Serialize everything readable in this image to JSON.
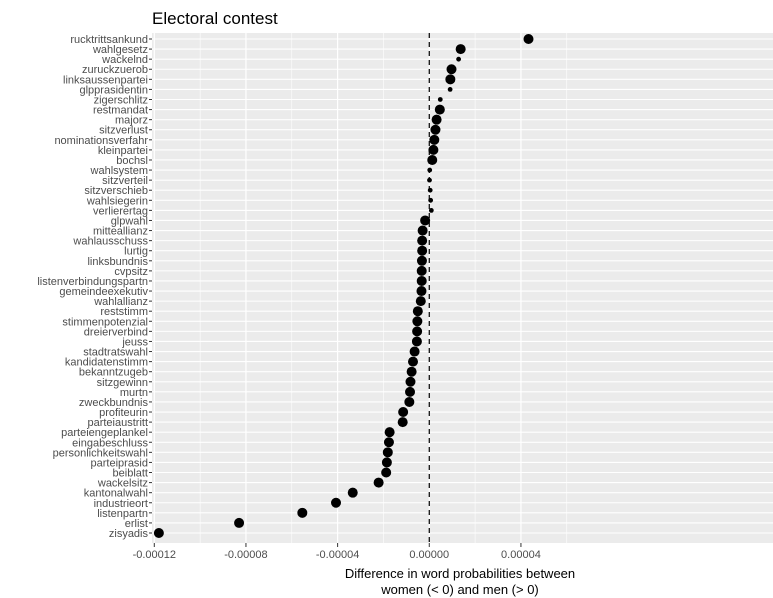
{
  "chart_data": {
    "type": "scatter",
    "title": "Electoral contest",
    "xlabel_lines": [
      "Difference in word probabilities between",
      "women (< 0) and men (> 0)"
    ],
    "ylabel": "",
    "xlim": [
      -0.000121,
      0.00015
    ],
    "x_ticks": [
      -0.00012,
      -8e-05,
      -4e-05,
      0.0,
      4e-05
    ],
    "x_tick_labels": [
      "-0.00012",
      "-0.00008",
      "-0.00004",
      "0.00000",
      "0.00004"
    ],
    "reference_line_x": 0.0,
    "grid": true,
    "colors": {
      "panel": "#ebebeb",
      "grid": "#ffffff",
      "point": "#000000",
      "text": "#4d4d4d"
    },
    "points": [
      {
        "word": "rucktrittsankund",
        "value": 4.33e-05,
        "size": "large"
      },
      {
        "word": "wahlgesetz",
        "value": 1.37e-05,
        "size": "large"
      },
      {
        "word": "wackelnd",
        "value": 1.28e-05,
        "size": "small"
      },
      {
        "word": "zuruckzuerob",
        "value": 9.7e-06,
        "size": "large"
      },
      {
        "word": "linksaussenpartei",
        "value": 9.2e-06,
        "size": "large"
      },
      {
        "word": "glpprasidentin",
        "value": 9.1e-06,
        "size": "small"
      },
      {
        "word": "zigerschlitz",
        "value": 4.8e-06,
        "size": "small"
      },
      {
        "word": "restmandat",
        "value": 4.6e-06,
        "size": "large"
      },
      {
        "word": "majorz",
        "value": 3.2e-06,
        "size": "large"
      },
      {
        "word": "sitzverlust",
        "value": 2.7e-06,
        "size": "large"
      },
      {
        "word": "nominationsverfahr",
        "value": 2.2e-06,
        "size": "large"
      },
      {
        "word": "kleinpartei",
        "value": 1.8e-06,
        "size": "large"
      },
      {
        "word": "bochsl",
        "value": 1.3e-06,
        "size": "large"
      },
      {
        "word": "wahlsystem",
        "value": 2e-07,
        "size": "small"
      },
      {
        "word": "sitzverteil",
        "value": 1e-07,
        "size": "small"
      },
      {
        "word": "sitzverschieb",
        "value": 4e-07,
        "size": "small"
      },
      {
        "word": "wahlsiegerin",
        "value": 6e-07,
        "size": "small"
      },
      {
        "word": "verlierertag",
        "value": 9e-07,
        "size": "small"
      },
      {
        "word": "glpwahl",
        "value": -1.8e-06,
        "size": "large"
      },
      {
        "word": "mitteallianz",
        "value": -2.9e-06,
        "size": "large"
      },
      {
        "word": "wahlausschuss",
        "value": -3.1e-06,
        "size": "large"
      },
      {
        "word": "lurtig",
        "value": -3.1e-06,
        "size": "large"
      },
      {
        "word": "linksbundnis",
        "value": -3.2e-06,
        "size": "large"
      },
      {
        "word": "cvpsitz",
        "value": -3.3e-06,
        "size": "large"
      },
      {
        "word": "listenverbindungspartn",
        "value": -3.3e-06,
        "size": "large"
      },
      {
        "word": "gemeindeexekutiv",
        "value": -3.4e-06,
        "size": "large"
      },
      {
        "word": "wahlallianz",
        "value": -3.7e-06,
        "size": "large"
      },
      {
        "word": "reststimm",
        "value": -5e-06,
        "size": "large"
      },
      {
        "word": "stimmenpotenzial",
        "value": -5.2e-06,
        "size": "large"
      },
      {
        "word": "dreierverbind",
        "value": -5.3e-06,
        "size": "large"
      },
      {
        "word": "jeuss",
        "value": -5.4e-06,
        "size": "large"
      },
      {
        "word": "stadtratswahl",
        "value": -6.4e-06,
        "size": "large"
      },
      {
        "word": "kandidatenstimm",
        "value": -7.1e-06,
        "size": "large"
      },
      {
        "word": "bekanntzugeb",
        "value": -7.7e-06,
        "size": "large"
      },
      {
        "word": "sitzgewinn",
        "value": -8.2e-06,
        "size": "large"
      },
      {
        "word": "murtn",
        "value": -8.4e-06,
        "size": "large"
      },
      {
        "word": "zweckbundnis",
        "value": -8.7e-06,
        "size": "large"
      },
      {
        "word": "profiteurin",
        "value": -1.14e-05,
        "size": "large"
      },
      {
        "word": "parteiaustritt",
        "value": -1.16e-05,
        "size": "large"
      },
      {
        "word": "parteiengeplankel",
        "value": -1.73e-05,
        "size": "large"
      },
      {
        "word": "eingabeschluss",
        "value": -1.76e-05,
        "size": "large"
      },
      {
        "word": "personlichkeitswahl",
        "value": -1.81e-05,
        "size": "large"
      },
      {
        "word": "parteiprasid",
        "value": -1.85e-05,
        "size": "large"
      },
      {
        "word": "beiblatt",
        "value": -1.88e-05,
        "size": "large"
      },
      {
        "word": "wackelsitz",
        "value": -2.21e-05,
        "size": "large"
      },
      {
        "word": "kantonalwahl",
        "value": -3.34e-05,
        "size": "large"
      },
      {
        "word": "industrieort",
        "value": -4.07e-05,
        "size": "large"
      },
      {
        "word": "listenpartn",
        "value": -5.54e-05,
        "size": "large"
      },
      {
        "word": "erlist",
        "value": -8.3e-05,
        "size": "large"
      },
      {
        "word": "zisyadis",
        "value": -0.000118,
        "size": "large"
      }
    ]
  }
}
